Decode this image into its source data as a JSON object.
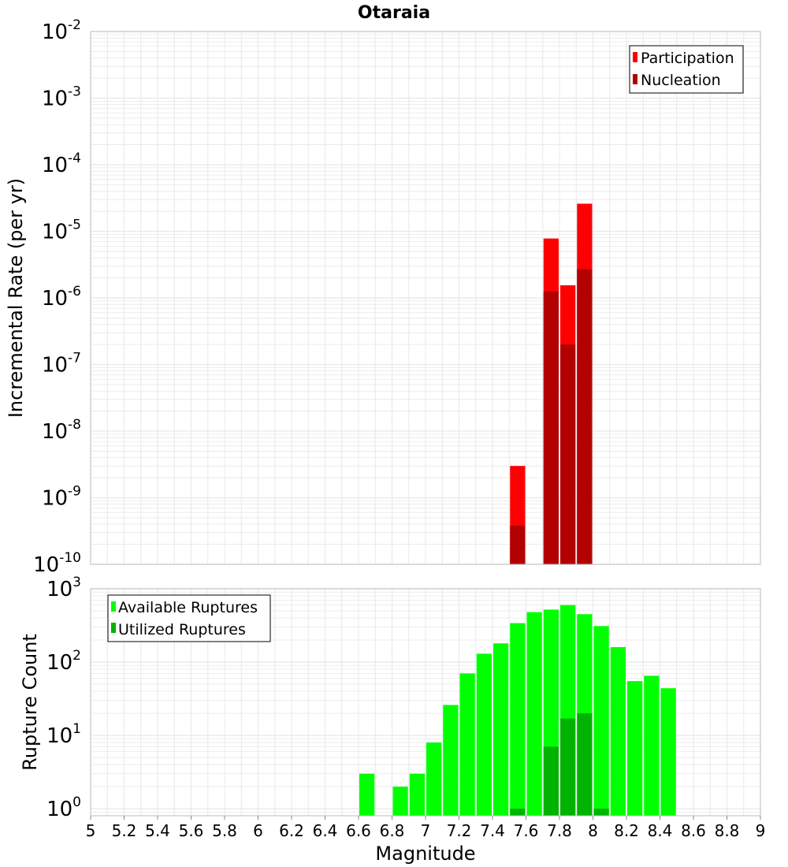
{
  "title": "Otaraia",
  "xlabel": "Magnitude",
  "x_ticks": [
    "5",
    "5.2",
    "5.4",
    "5.6",
    "5.8",
    "6",
    "6.2",
    "6.4",
    "6.6",
    "6.8",
    "7",
    "7.2",
    "7.4",
    "7.6",
    "7.8",
    "8",
    "8.2",
    "8.4",
    "8.6",
    "8.8",
    "9"
  ],
  "colors": {
    "participation": "#ff0000",
    "nucleation": "#b30000",
    "available": "#00ff00",
    "utilized": "#00b300",
    "grid": "#e8e8e8",
    "frame": "#bbbbbb"
  },
  "chart_data": [
    {
      "type": "bar",
      "panel": "top",
      "ylabel": "Incremental Rate (per yr)",
      "yscale": "log",
      "ylim": [
        1e-10,
        0.01
      ],
      "xlim": [
        5,
        9
      ],
      "bar_width": 0.1,
      "y_ticks": [
        {
          "base": "10",
          "exp": "-10"
        },
        {
          "base": "10",
          "exp": "-9"
        },
        {
          "base": "10",
          "exp": "-8"
        },
        {
          "base": "10",
          "exp": "-7"
        },
        {
          "base": "10",
          "exp": "-6"
        },
        {
          "base": "10",
          "exp": "-5"
        },
        {
          "base": "10",
          "exp": "-4"
        },
        {
          "base": "10",
          "exp": "-3"
        },
        {
          "base": "10",
          "exp": "-2"
        }
      ],
      "legend_position": "top-right",
      "series": [
        {
          "name": "Participation",
          "x": [
            7.55,
            7.75,
            7.85,
            7.95
          ],
          "values": [
            3e-09,
            7.8e-06,
            1.55e-06,
            2.6e-05
          ]
        },
        {
          "name": "Nucleation",
          "x": [
            7.55,
            7.75,
            7.85,
            7.95
          ],
          "values": [
            3.8e-10,
            1.25e-06,
            2e-07,
            2.7e-06
          ]
        }
      ]
    },
    {
      "type": "bar",
      "panel": "bottom",
      "ylabel": "Rupture Count",
      "yscale": "log",
      "ylim": [
        0.8,
        1000
      ],
      "xlim": [
        5,
        9
      ],
      "bar_width": 0.1,
      "y_ticks": [
        {
          "base": "10",
          "exp": "0"
        },
        {
          "base": "10",
          "exp": "1"
        },
        {
          "base": "10",
          "exp": "2"
        },
        {
          "base": "10",
          "exp": "3"
        }
      ],
      "legend_position": "top-left",
      "series": [
        {
          "name": "Available Ruptures",
          "x": [
            6.65,
            6.85,
            6.95,
            7.05,
            7.15,
            7.25,
            7.35,
            7.45,
            7.55,
            7.65,
            7.75,
            7.85,
            7.95,
            8.05,
            8.15,
            8.25,
            8.35,
            8.45
          ],
          "values": [
            3,
            2,
            3,
            8,
            26,
            70,
            130,
            180,
            340,
            480,
            520,
            600,
            450,
            310,
            160,
            55,
            65,
            44
          ]
        },
        {
          "name": "Utilized Ruptures",
          "x": [
            7.55,
            7.75,
            7.85,
            7.95,
            8.05
          ],
          "values": [
            1,
            7,
            17,
            20,
            1
          ]
        }
      ]
    }
  ]
}
